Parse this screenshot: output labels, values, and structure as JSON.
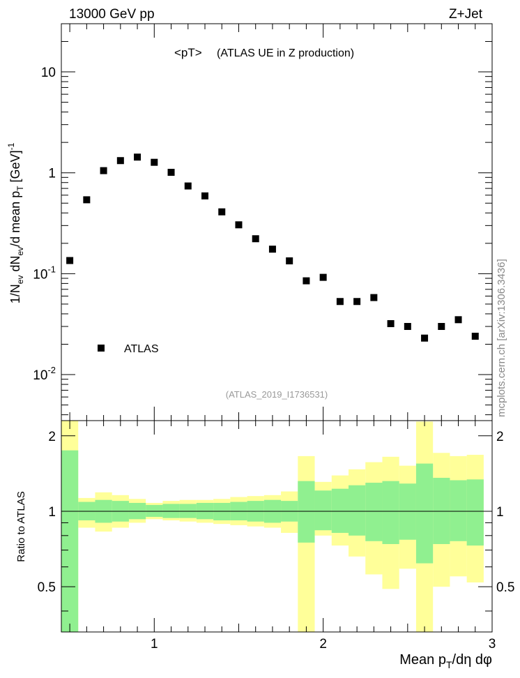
{
  "header": {
    "left": "13000 GeV pp",
    "right": "Z+Jet"
  },
  "side_label": "mcplots.cern.ch [arXiv:1306.3436]",
  "chart_data": [
    {
      "type": "scatter",
      "title": "<pT>",
      "subtitle": "(ATLAS UE in Z production)",
      "analysis_tag": "(ATLAS_2019_I1736531)",
      "ylabel": "1/N_ev dN_ev/d mean p_T [GeV]^-1",
      "xlabel": "",
      "x_scale": "linear",
      "y_scale": "log",
      "xlim": [
        0.45,
        3.0
      ],
      "ylim": [
        0.0035,
        30
      ],
      "x_ticks": [
        1,
        2,
        3
      ],
      "y_ticks": [
        {
          "value": 10,
          "label": "10"
        },
        {
          "value": 1,
          "label": "1"
        },
        {
          "value": 0.1,
          "label": "10^-1"
        },
        {
          "value": 0.01,
          "label": "10^-2"
        }
      ],
      "legend": {
        "placement": "bottom-left",
        "entries": [
          "ATLAS"
        ]
      },
      "series": [
        {
          "name": "ATLAS",
          "marker": "square",
          "color": "#000000",
          "x": [
            0.5,
            0.6,
            0.7,
            0.8,
            0.9,
            1.0,
            1.1,
            1.2,
            1.3,
            1.4,
            1.5,
            1.6,
            1.7,
            1.8,
            1.9,
            2.0,
            2.1,
            2.2,
            2.3,
            2.4,
            2.5,
            2.6,
            2.7,
            2.8,
            2.9
          ],
          "y": [
            0.135,
            0.54,
            1.05,
            1.32,
            1.43,
            1.27,
            1.01,
            0.74,
            0.59,
            0.41,
            0.305,
            0.222,
            0.175,
            0.134,
            0.085,
            0.092,
            0.053,
            0.053,
            0.058,
            0.032,
            0.03,
            0.023,
            0.03,
            0.035,
            0.024
          ]
        }
      ]
    },
    {
      "type": "area",
      "ylabel": "Ratio to ATLAS",
      "xlabel": "Mean p_T/dη dφ",
      "xlim": [
        0.45,
        3.0
      ],
      "ylim": [
        0.33,
        2.3
      ],
      "x_ticks": [
        1,
        2,
        3
      ],
      "y_ticks": [
        0.5,
        1,
        2
      ],
      "reference_line": 1,
      "bin_edges": [
        0.45,
        0.55,
        0.65,
        0.75,
        0.85,
        0.95,
        1.05,
        1.15,
        1.25,
        1.35,
        1.45,
        1.55,
        1.65,
        1.75,
        1.85,
        1.95,
        2.05,
        2.15,
        2.25,
        2.35,
        2.45,
        2.55,
        2.65,
        2.75,
        2.85,
        2.95
      ],
      "bands": [
        {
          "name": "stat",
          "color": "#90f090",
          "upper": [
            1.75,
            1.09,
            1.11,
            1.1,
            1.08,
            1.06,
            1.07,
            1.07,
            1.08,
            1.08,
            1.09,
            1.1,
            1.11,
            1.1,
            1.32,
            1.21,
            1.23,
            1.27,
            1.3,
            1.32,
            1.29,
            1.55,
            1.36,
            1.33,
            1.34
          ],
          "lower": [
            0.3,
            0.92,
            0.9,
            0.91,
            0.93,
            0.95,
            0.94,
            0.94,
            0.93,
            0.92,
            0.92,
            0.91,
            0.9,
            0.91,
            0.75,
            0.84,
            0.82,
            0.8,
            0.76,
            0.74,
            0.77,
            0.62,
            0.74,
            0.76,
            0.73
          ]
        },
        {
          "name": "total",
          "color": "#ffff99",
          "upper": [
            2.35,
            1.13,
            1.19,
            1.16,
            1.12,
            1.08,
            1.1,
            1.11,
            1.11,
            1.12,
            1.14,
            1.15,
            1.16,
            1.2,
            1.66,
            1.31,
            1.39,
            1.47,
            1.57,
            1.65,
            1.52,
            2.28,
            1.71,
            1.66,
            1.68
          ],
          "lower": [
            0.3,
            0.86,
            0.83,
            0.86,
            0.9,
            0.93,
            0.92,
            0.91,
            0.9,
            0.89,
            0.88,
            0.87,
            0.86,
            0.82,
            0.3,
            0.8,
            0.73,
            0.66,
            0.56,
            0.49,
            0.59,
            0.3,
            0.5,
            0.55,
            0.52
          ]
        }
      ]
    }
  ]
}
